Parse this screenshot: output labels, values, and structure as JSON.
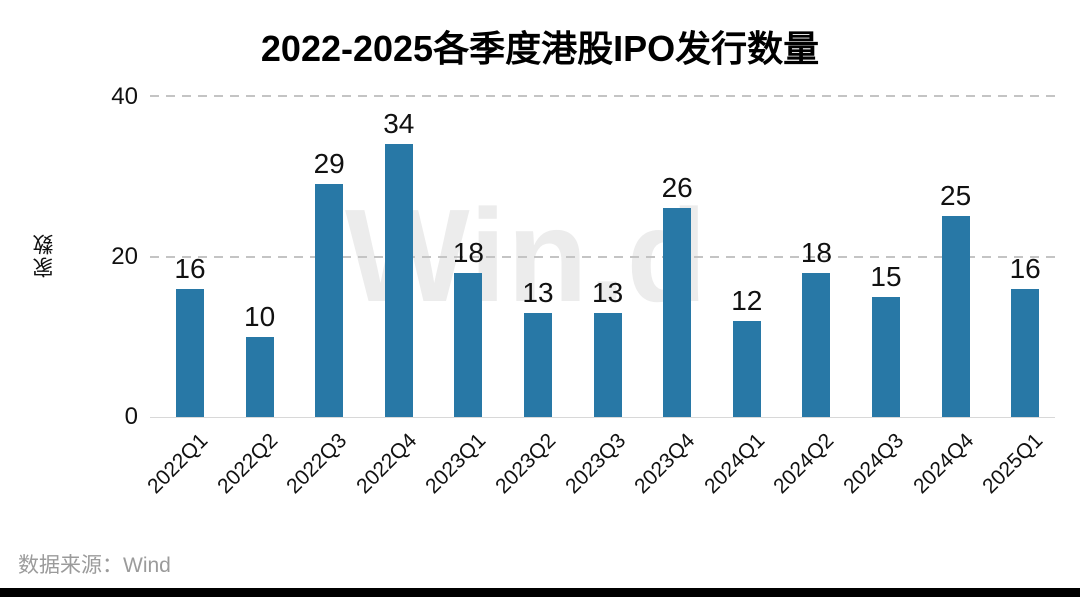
{
  "chart_data": {
    "type": "bar",
    "title": "2022-2025各季度港股IPO发行数量",
    "categories": [
      "2022Q1",
      "2022Q2",
      "2022Q3",
      "2022Q4",
      "2023Q1",
      "2023Q2",
      "2023Q3",
      "2023Q4",
      "2024Q1",
      "2024Q2",
      "2024Q3",
      "2024Q4",
      "2025Q1"
    ],
    "values": [
      16,
      10,
      29,
      34,
      18,
      13,
      13,
      26,
      12,
      18,
      15,
      25,
      16
    ],
    "xlabel": "",
    "ylabel": "家数",
    "yticks": [
      "0",
      "20",
      "40"
    ],
    "ylim": [
      0,
      40
    ],
    "grid": "horizontal-dashed",
    "bar_labels": true,
    "legend": "none"
  },
  "watermark": "Win.d",
  "source_label": "数据来源：Wind",
  "colors": {
    "bar": "#2878a6",
    "gridline": "#c4c4c4",
    "baseline": "#d8d8d8",
    "watermark": "#ececec",
    "title_text": "#000000",
    "axis_text": "#111111",
    "source_text": "#9b9b9b",
    "footer_bar": "#000000"
  }
}
